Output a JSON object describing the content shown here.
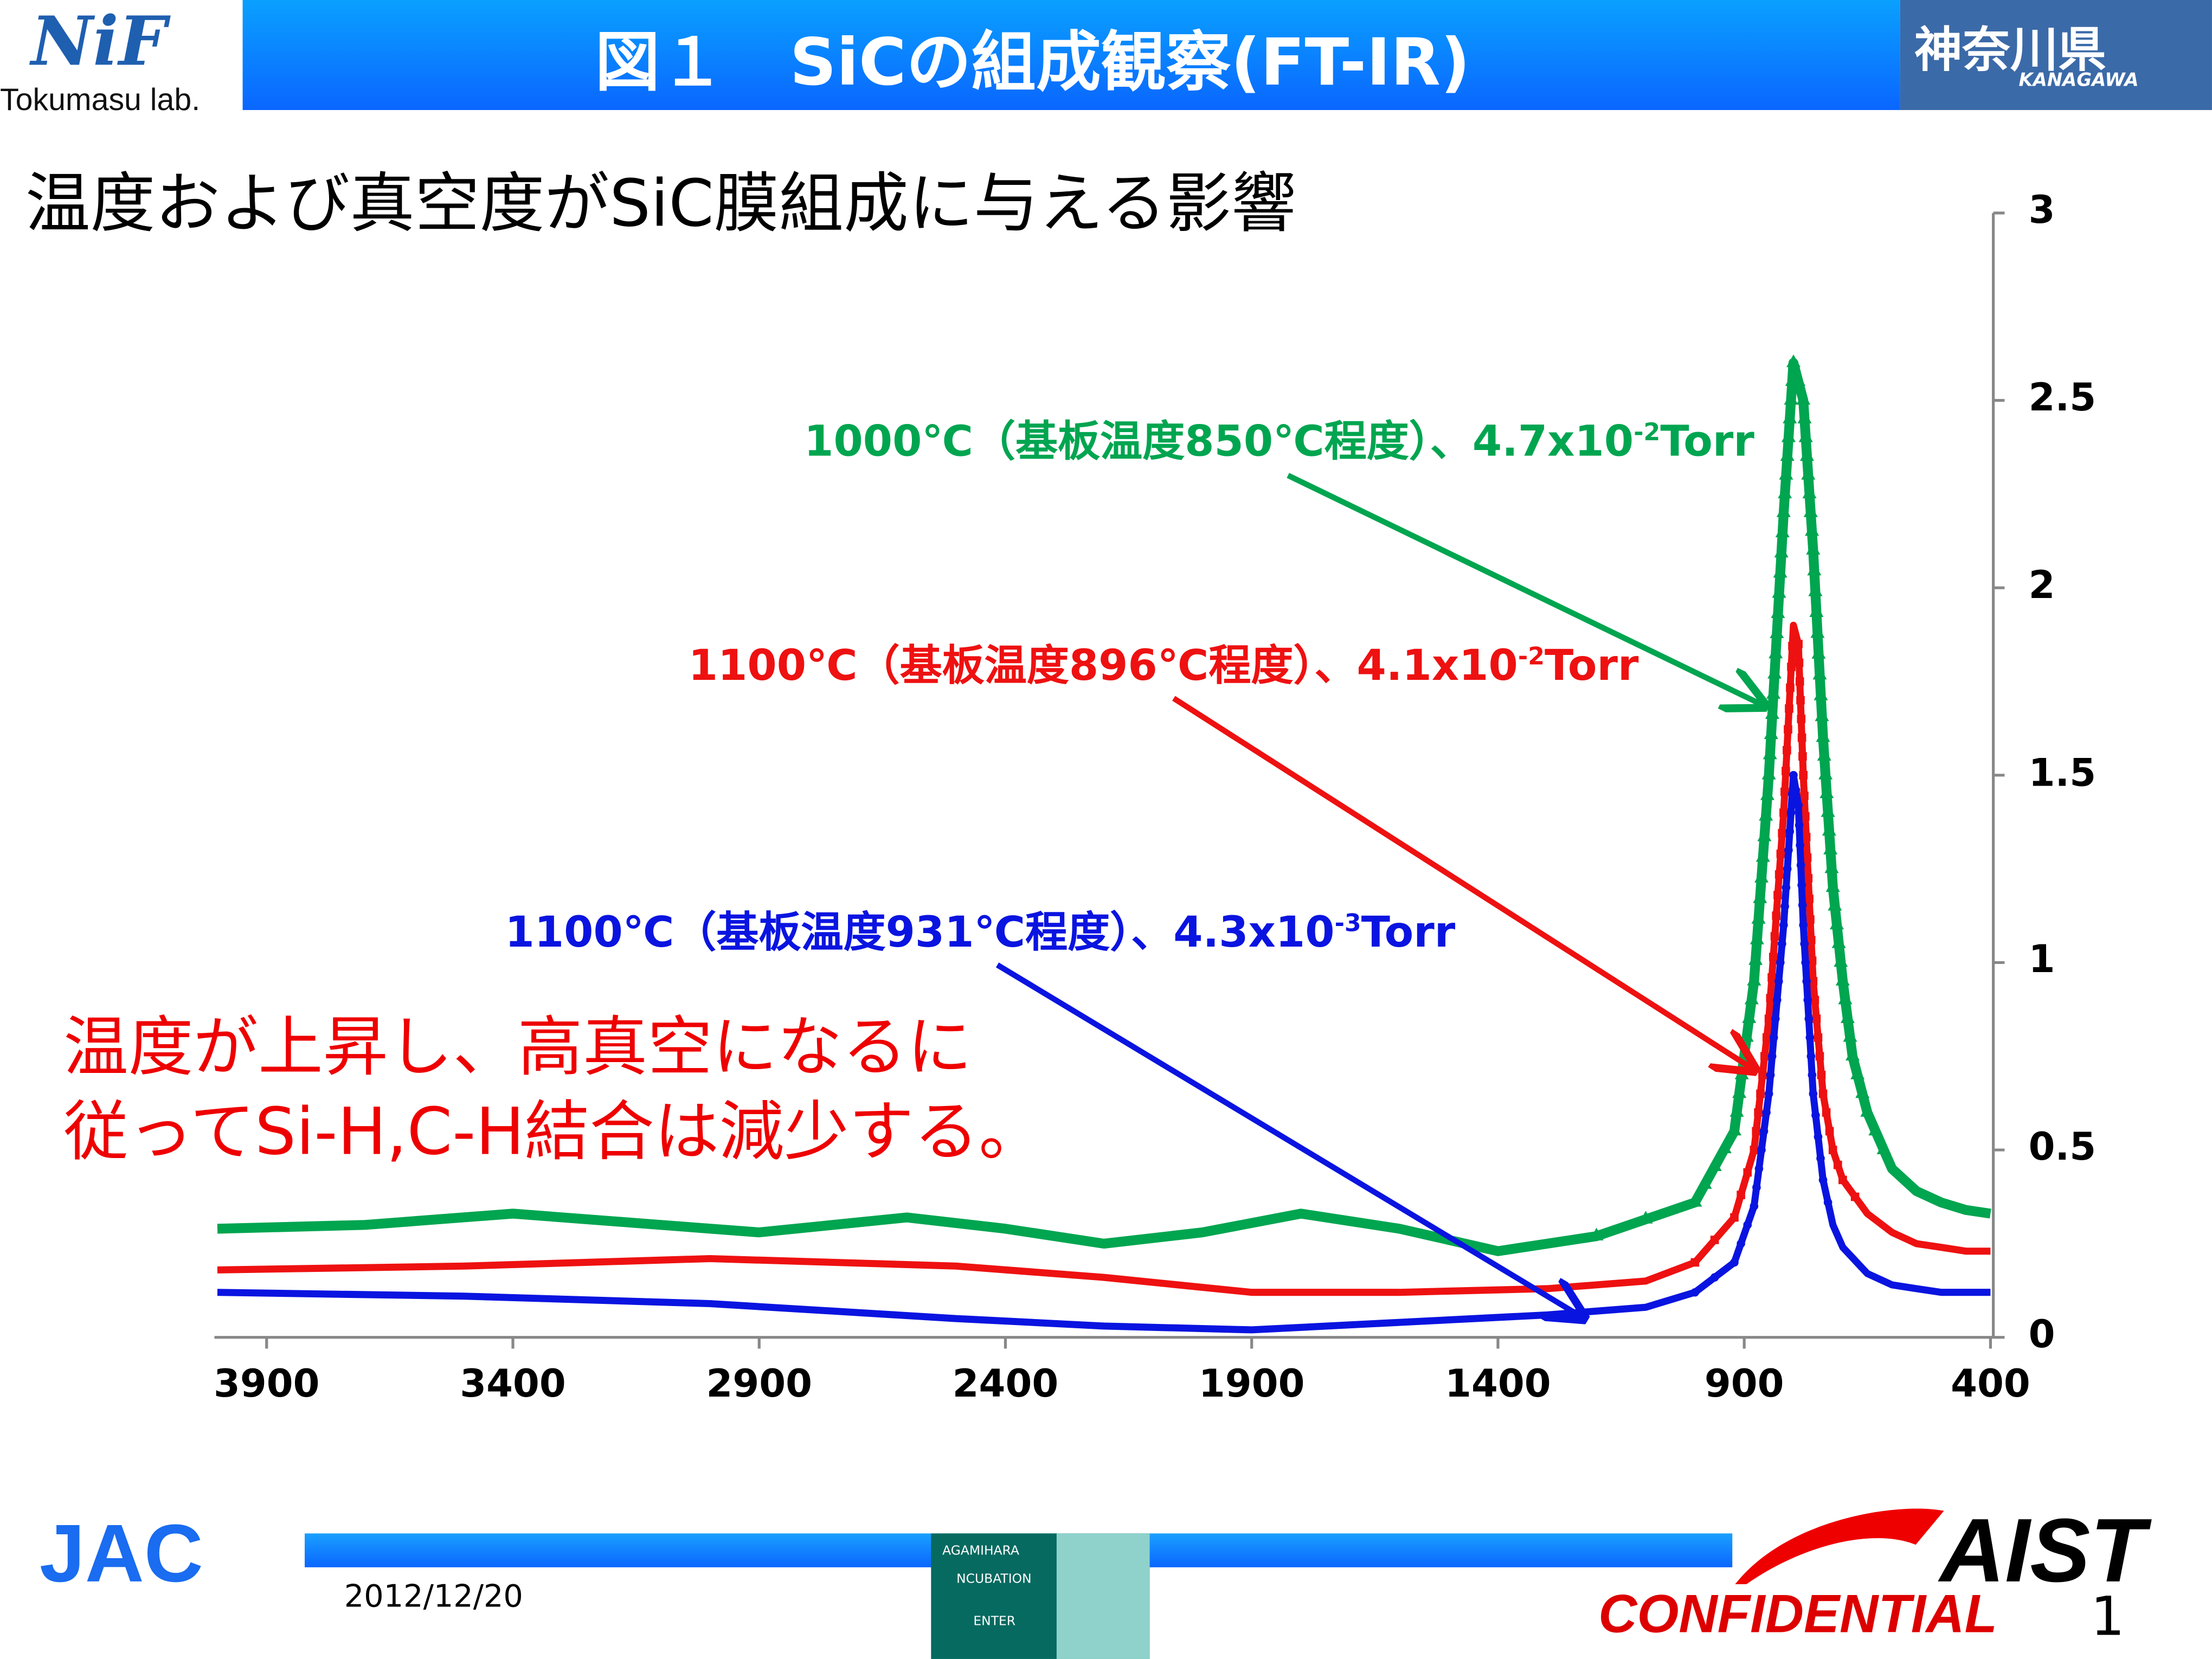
{
  "header": {
    "title": "図１　SiCの組成観察(FT-IR)",
    "left_logo": {
      "mark": "NiF",
      "caption": "Tokumasu lab."
    },
    "right_logo": {
      "name": "神奈川県",
      "romaji": "KANAGAWA"
    }
  },
  "subtitle": "温度および真空度がSiC膜組成に与える影響",
  "annotations": [
    {
      "prefix": "1000℃（基板温度850℃程度）、4.7x10",
      "exp": "-2",
      "suffix": "Torr",
      "color": "#00a550"
    },
    {
      "prefix": "1100℃（基板温度896℃程度）、4.1x10",
      "exp": "-2",
      "suffix": "Torr",
      "color": "#ee1111"
    },
    {
      "prefix": "1100℃（基板温度931℃程度）、4.3x10",
      "exp": "-3",
      "suffix": "Torr",
      "color": "#0a14e0"
    }
  ],
  "note": [
    "温度が上昇し、高真空になるに",
    "従ってSi-H,C-H結合は減少する。"
  ],
  "chart_data": {
    "type": "line",
    "xlabel": "",
    "ylabel": "",
    "xlim": [
      4000,
      400
    ],
    "x_reversed": true,
    "ylim": [
      0,
      3
    ],
    "xticks": [
      "3900",
      "3400",
      "2900",
      "2400",
      "1900",
      "1400",
      "900",
      "400"
    ],
    "yticks": [
      "0",
      "0.5",
      "1",
      "1.5",
      "2",
      "2.5",
      "3"
    ],
    "series": [
      {
        "name": "1000℃ 4.7x10-2Torr",
        "color": "#00a550",
        "marker": "triangle",
        "x": [
          4000,
          3700,
          3400,
          3100,
          2900,
          2600,
          2400,
          2200,
          2000,
          1800,
          1600,
          1400,
          1200,
          1000,
          920,
          880,
          850,
          820,
          800,
          780,
          760,
          740,
          720,
          700,
          680,
          650,
          600,
          550,
          500,
          450,
          400
        ],
        "y": [
          0.29,
          0.3,
          0.33,
          0.3,
          0.28,
          0.32,
          0.29,
          0.25,
          0.28,
          0.33,
          0.29,
          0.23,
          0.27,
          0.36,
          0.55,
          0.95,
          1.5,
          2.2,
          2.6,
          2.5,
          2.1,
          1.6,
          1.2,
          0.95,
          0.75,
          0.6,
          0.45,
          0.39,
          0.36,
          0.34,
          0.33
        ]
      },
      {
        "name": "1100℃ 4.1x10-2Torr",
        "color": "#ee1111",
        "marker": "square",
        "x": [
          4000,
          3500,
          3000,
          2500,
          2200,
          1900,
          1600,
          1300,
          1100,
          1000,
          920,
          880,
          850,
          820,
          800,
          790,
          780,
          760,
          740,
          720,
          700,
          650,
          600,
          550,
          500,
          450,
          400
        ],
        "y": [
          0.18,
          0.19,
          0.21,
          0.19,
          0.16,
          0.12,
          0.12,
          0.13,
          0.15,
          0.2,
          0.32,
          0.5,
          0.85,
          1.4,
          1.9,
          1.85,
          1.5,
          0.95,
          0.65,
          0.5,
          0.42,
          0.33,
          0.28,
          0.25,
          0.24,
          0.23,
          0.23
        ]
      },
      {
        "name": "1100℃ 4.3x10-3Torr",
        "color": "#0a14e0",
        "marker": "dot",
        "x": [
          4000,
          3500,
          3000,
          2500,
          2200,
          1900,
          1600,
          1300,
          1100,
          1000,
          920,
          880,
          850,
          820,
          800,
          790,
          780,
          760,
          740,
          720,
          700,
          650,
          600,
          550,
          500,
          450,
          400
        ],
        "y": [
          0.12,
          0.11,
          0.09,
          0.05,
          0.03,
          0.02,
          0.04,
          0.06,
          0.08,
          0.12,
          0.2,
          0.35,
          0.65,
          1.1,
          1.5,
          1.42,
          1.1,
          0.65,
          0.42,
          0.3,
          0.24,
          0.17,
          0.14,
          0.13,
          0.12,
          0.12,
          0.12
        ]
      }
    ]
  },
  "footer": {
    "date": "2012/12/20",
    "left_logo": "JAC",
    "center_logo": [
      "AGAMIHARA",
      "NCUBATION",
      "ENTER"
    ],
    "right_logo": "AIST",
    "confidential": "CONFIDENTIAL",
    "page": "1"
  }
}
